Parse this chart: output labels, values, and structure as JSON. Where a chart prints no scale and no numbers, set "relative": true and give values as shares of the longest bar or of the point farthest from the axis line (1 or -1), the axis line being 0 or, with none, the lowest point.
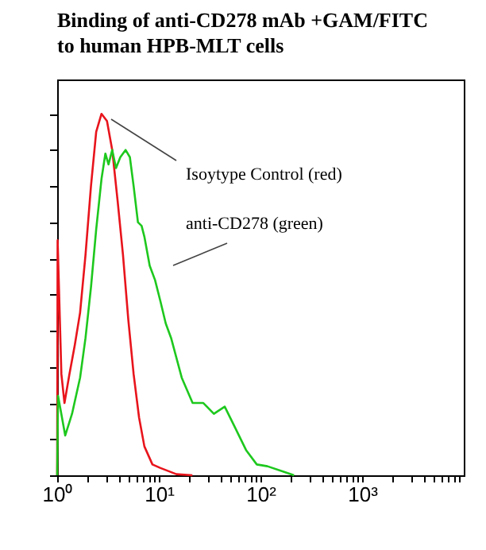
{
  "chart_data": {
    "type": "line",
    "title": "Binding of anti-CD278 mAb +GAM/FITC\nto human HPB-MLT cells",
    "relative": true,
    "log": "x",
    "grid": false,
    "tick_labels": "x",
    "marker": "none",
    "line_style": "solid",
    "xlim": [
      1,
      10000
    ],
    "xticks": [
      {
        "value": 1,
        "label": "10⁰"
      },
      {
        "value": 2,
        "label": null
      },
      {
        "value": 3,
        "label": null
      },
      {
        "value": 4,
        "label": null
      },
      {
        "value": 5,
        "label": null
      },
      {
        "value": 6,
        "label": null
      },
      {
        "value": 7,
        "label": null
      },
      {
        "value": 8,
        "label": null
      },
      {
        "value": 9,
        "label": null
      },
      {
        "value": 10,
        "label": "10¹"
      },
      {
        "value": 20,
        "label": null
      },
      {
        "value": 30,
        "label": null
      },
      {
        "value": 40,
        "label": null
      },
      {
        "value": 50,
        "label": null
      },
      {
        "value": 60,
        "label": null
      },
      {
        "value": 70,
        "label": null
      },
      {
        "value": 80,
        "label": null
      },
      {
        "value": 90,
        "label": null
      },
      {
        "value": 100,
        "label": "10²"
      },
      {
        "value": 200,
        "label": null
      },
      {
        "value": 300,
        "label": null
      },
      {
        "value": 400,
        "label": null
      },
      {
        "value": 500,
        "label": null
      },
      {
        "value": 600,
        "label": null
      },
      {
        "value": 700,
        "label": null
      },
      {
        "value": 800,
        "label": null
      },
      {
        "value": 900,
        "label": null
      },
      {
        "value": 1000,
        "label": "10³"
      },
      {
        "value": 2000,
        "label": null
      },
      {
        "value": 3000,
        "label": null
      },
      {
        "value": 4000,
        "label": null
      },
      {
        "value": 5000,
        "label": null
      },
      {
        "value": 6000,
        "label": null
      },
      {
        "value": 7000,
        "label": null
      },
      {
        "value": 8000,
        "label": null
      },
      {
        "value": 9000,
        "label": null
      }
    ],
    "annotations": [
      "Isoytype Control (red)",
      "anti-CD278 (green)"
    ],
    "series": [
      {
        "color": "#e8141c",
        "x": [
          1.0,
          1.01,
          1.1,
          1.18,
          1.32,
          1.49,
          1.68,
          1.9,
          2.15,
          2.42,
          2.73,
          3.09,
          3.48,
          3.93,
          4.44,
          5.01,
          5.65,
          6.39,
          7.21,
          8.65,
          10.4,
          14.9,
          21.4
        ],
        "values": [
          0,
          0.65,
          0.28,
          0.2,
          0.28,
          0.36,
          0.45,
          0.61,
          0.8,
          0.95,
          1,
          0.98,
          0.9,
          0.76,
          0.61,
          0.43,
          0.28,
          0.16,
          0.08,
          0.03,
          0.02,
          0.003,
          0
        ]
      },
      {
        "color": "#1ec81e",
        "x": [
          1.0,
          1.02,
          1.2,
          1.4,
          1.68,
          1.9,
          2.15,
          2.42,
          2.73,
          2.98,
          3.2,
          3.48,
          3.79,
          4.18,
          4.71,
          5.19,
          5.65,
          6.23,
          6.77,
          7.21,
          8.13,
          9.18,
          10.4,
          11.7,
          13.2,
          16.8,
          21.5,
          27.4,
          34.8,
          44.5,
          56.7,
          72.1,
          92,
          117,
          169,
          214
        ],
        "values": [
          0,
          0.22,
          0.11,
          0.17,
          0.27,
          0.38,
          0.52,
          0.68,
          0.82,
          0.89,
          0.86,
          0.9,
          0.85,
          0.88,
          0.9,
          0.88,
          0.8,
          0.7,
          0.69,
          0.66,
          0.58,
          0.54,
          0.48,
          0.42,
          0.38,
          0.27,
          0.2,
          0.2,
          0.17,
          0.19,
          0.13,
          0.07,
          0.03,
          0.025,
          0.01,
          0
        ]
      }
    ]
  }
}
